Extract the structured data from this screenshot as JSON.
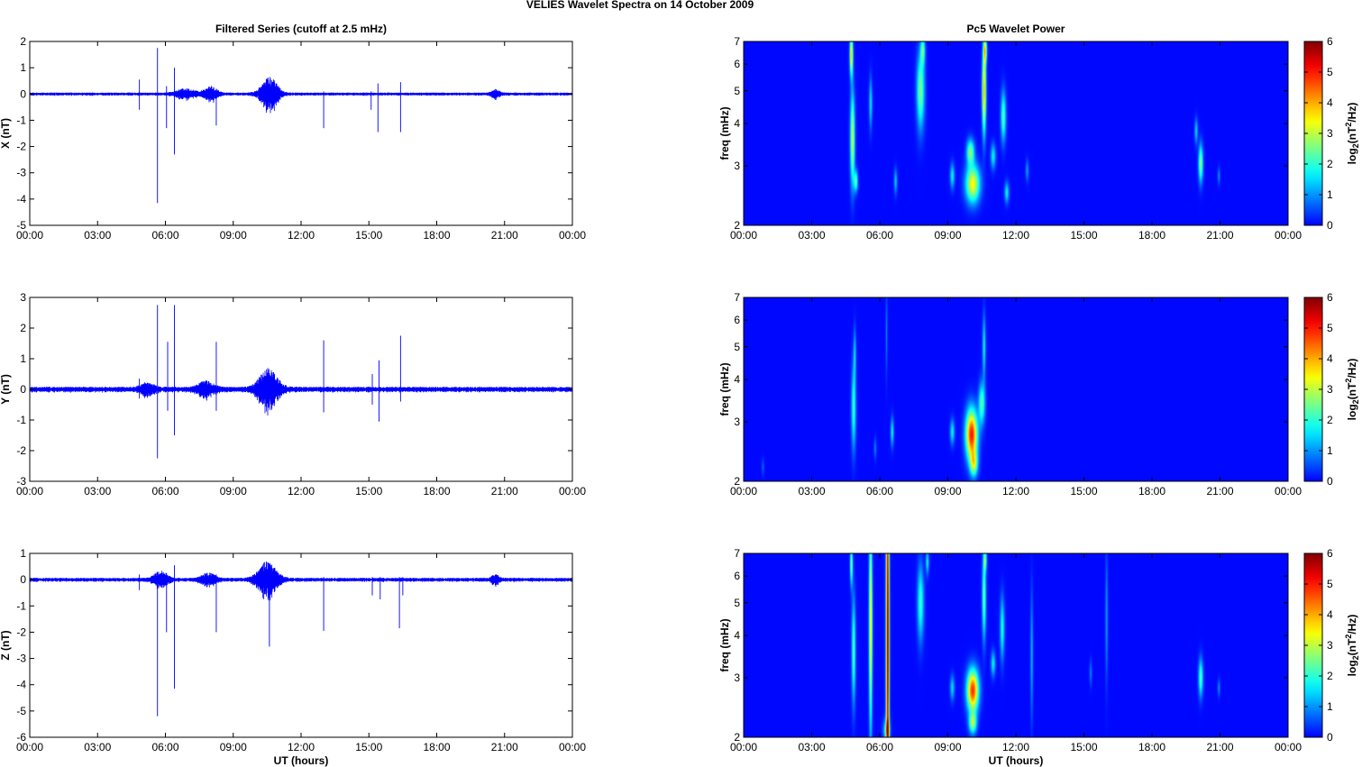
{
  "figure": {
    "suptitle": "VELIES Wavelet Spectra on 14 October   2009"
  },
  "chart_data": [
    {
      "type": "line",
      "panel": "filtered-x",
      "title": "Filtered Series (cutoff at 2.5 mHz)",
      "xlabel": "",
      "ylabel": "X (nT)",
      "x_ticks": [
        "00:00",
        "03:00",
        "06:00",
        "09:00",
        "12:00",
        "15:00",
        "18:00",
        "21:00",
        "00:00"
      ],
      "y_ticks": [
        2,
        1,
        0,
        -1,
        -2,
        -3,
        -4,
        -5
      ],
      "ylim": [
        -5,
        2
      ],
      "xlim_hours": [
        0,
        24
      ],
      "color": "#0000ff",
      "baseline_noise_amplitude": 0.04,
      "spikes": [
        {
          "t": 5.65,
          "min": -4.15,
          "max": 1.75
        },
        {
          "t": 6.4,
          "min": -2.3,
          "max": 1.0
        },
        {
          "t": 6.05,
          "min": -1.3,
          "max": 0.3
        },
        {
          "t": 4.85,
          "min": -0.6,
          "max": 0.55
        },
        {
          "t": 8.25,
          "min": -1.2,
          "max": 0.2
        },
        {
          "t": 13.0,
          "min": -1.3,
          "max": 0.1
        },
        {
          "t": 15.4,
          "min": -1.45,
          "max": 0.4
        },
        {
          "t": 16.4,
          "min": -1.45,
          "max": 0.45
        },
        {
          "t": 15.1,
          "min": -0.6,
          "max": 0.1
        }
      ],
      "bursts": [
        {
          "t": 10.6,
          "width": 0.6,
          "amp": 0.45
        },
        {
          "t": 8.0,
          "width": 0.5,
          "amp": 0.18
        },
        {
          "t": 6.9,
          "width": 0.7,
          "amp": 0.12
        },
        {
          "t": 20.6,
          "width": 0.3,
          "amp": 0.1
        }
      ]
    },
    {
      "type": "line",
      "panel": "filtered-y",
      "xlabel": "",
      "ylabel": "Y (nT)",
      "x_ticks": [
        "00:00",
        "03:00",
        "06:00",
        "09:00",
        "12:00",
        "15:00",
        "18:00",
        "21:00",
        "00:00"
      ],
      "y_ticks": [
        3,
        2,
        1,
        0,
        -1,
        -2,
        -3
      ],
      "ylim": [
        -3,
        3
      ],
      "xlim_hours": [
        0,
        24
      ],
      "color": "#0000ff",
      "baseline_noise_amplitude": 0.06,
      "spikes": [
        {
          "t": 5.65,
          "min": -2.25,
          "max": 2.75
        },
        {
          "t": 6.4,
          "min": -1.5,
          "max": 2.75
        },
        {
          "t": 6.1,
          "min": -0.7,
          "max": 1.55
        },
        {
          "t": 8.25,
          "min": -0.7,
          "max": 1.55
        },
        {
          "t": 13.0,
          "min": -0.75,
          "max": 1.6
        },
        {
          "t": 15.45,
          "min": -1.05,
          "max": 0.95
        },
        {
          "t": 16.4,
          "min": -0.4,
          "max": 1.75
        },
        {
          "t": 4.85,
          "min": -0.3,
          "max": 0.35
        },
        {
          "t": 15.15,
          "min": -0.5,
          "max": 0.5
        }
      ],
      "bursts": [
        {
          "t": 10.55,
          "width": 0.7,
          "amp": 0.45
        },
        {
          "t": 7.8,
          "width": 0.6,
          "amp": 0.15
        },
        {
          "t": 5.2,
          "width": 0.5,
          "amp": 0.12
        }
      ]
    },
    {
      "type": "line",
      "panel": "filtered-z",
      "xlabel": "UT (hours)",
      "ylabel": "Z (nT)",
      "x_ticks": [
        "00:00",
        "03:00",
        "06:00",
        "09:00",
        "12:00",
        "15:00",
        "18:00",
        "21:00",
        "00:00"
      ],
      "y_ticks": [
        1,
        0,
        -1,
        -2,
        -3,
        -4,
        -5,
        -6
      ],
      "ylim": [
        -6,
        1
      ],
      "xlim_hours": [
        0,
        24
      ],
      "color": "#0000ff",
      "baseline_noise_amplitude": 0.05,
      "spikes": [
        {
          "t": 5.65,
          "min": -5.2,
          "max": 0.3
        },
        {
          "t": 6.4,
          "min": -4.15,
          "max": 0.55
        },
        {
          "t": 6.05,
          "min": -2.0,
          "max": 0.25
        },
        {
          "t": 8.25,
          "min": -2.0,
          "max": 0.2
        },
        {
          "t": 10.6,
          "min": -2.55,
          "max": 0.5
        },
        {
          "t": 13.0,
          "min": -1.95,
          "max": 0.1
        },
        {
          "t": 15.15,
          "min": -0.6,
          "max": 0.1
        },
        {
          "t": 15.5,
          "min": -0.75,
          "max": 0.1
        },
        {
          "t": 16.35,
          "min": -1.85,
          "max": 0.1
        },
        {
          "t": 16.5,
          "min": -0.6,
          "max": 0.1
        },
        {
          "t": 4.85,
          "min": -0.4,
          "max": 0.2
        }
      ],
      "bursts": [
        {
          "t": 10.5,
          "width": 0.7,
          "amp": 0.45
        },
        {
          "t": 5.8,
          "width": 0.5,
          "amp": 0.2
        },
        {
          "t": 7.9,
          "width": 0.5,
          "amp": 0.15
        },
        {
          "t": 20.6,
          "width": 0.3,
          "amp": 0.1
        }
      ]
    },
    {
      "type": "heatmap",
      "panel": "wavelet-x",
      "title": "Pc5 Wavelet Power",
      "xlabel": "",
      "ylabel": "freq (mHz)",
      "x_ticks": [
        "00:00",
        "03:00",
        "06:00",
        "09:00",
        "12:00",
        "15:00",
        "18:00",
        "21:00",
        "00:00"
      ],
      "y_ticks": [
        2,
        3,
        4,
        5,
        6,
        7
      ],
      "y_scale": "log",
      "ylim": [
        2,
        7
      ],
      "xlim_hours": [
        0,
        24
      ],
      "colorbar_label": "log2(nT2/Hz)",
      "colorbar_ticks": [
        0,
        1,
        2,
        3,
        4,
        5,
        6
      ],
      "clim": [
        0,
        6
      ],
      "colormap": "jet",
      "features": [
        {
          "t": 4.8,
          "f": 3.6,
          "dt": 0.07,
          "df": 0.22,
          "p": 3.0
        },
        {
          "t": 4.75,
          "f": 6.4,
          "dt": 0.05,
          "df": 0.1,
          "p": 3.6
        },
        {
          "t": 4.95,
          "f": 2.7,
          "dt": 0.06,
          "df": 0.05,
          "p": 2.2
        },
        {
          "t": 5.6,
          "f": 4.6,
          "dt": 0.05,
          "df": 0.12,
          "p": 1.5
        },
        {
          "t": 6.7,
          "f": 2.7,
          "dt": 0.05,
          "df": 0.06,
          "p": 1.3
        },
        {
          "t": 7.8,
          "f": 5.0,
          "dt": 0.12,
          "df": 0.18,
          "p": 2.5
        },
        {
          "t": 7.9,
          "f": 6.6,
          "dt": 0.07,
          "df": 0.07,
          "p": 2.0
        },
        {
          "t": 9.2,
          "f": 2.8,
          "dt": 0.07,
          "df": 0.06,
          "p": 1.6
        },
        {
          "t": 10.1,
          "f": 2.65,
          "dt": 0.22,
          "df": 0.09,
          "p": 3.4
        },
        {
          "t": 10.0,
          "f": 3.3,
          "dt": 0.12,
          "df": 0.06,
          "p": 2.5
        },
        {
          "t": 10.6,
          "f": 5.0,
          "dt": 0.06,
          "df": 0.2,
          "p": 4.0
        },
        {
          "t": 10.65,
          "f": 6.6,
          "dt": 0.05,
          "df": 0.06,
          "p": 3.0
        },
        {
          "t": 11.0,
          "f": 3.2,
          "dt": 0.08,
          "df": 0.06,
          "p": 1.6
        },
        {
          "t": 11.45,
          "f": 4.2,
          "dt": 0.08,
          "df": 0.12,
          "p": 2.2
        },
        {
          "t": 11.6,
          "f": 2.5,
          "dt": 0.07,
          "df": 0.05,
          "p": 1.6
        },
        {
          "t": 12.5,
          "f": 2.9,
          "dt": 0.05,
          "df": 0.05,
          "p": 1.0
        },
        {
          "t": 20.15,
          "f": 3.05,
          "dt": 0.07,
          "df": 0.09,
          "p": 2.6
        },
        {
          "t": 19.95,
          "f": 3.8,
          "dt": 0.05,
          "df": 0.06,
          "p": 1.4
        },
        {
          "t": 20.95,
          "f": 2.8,
          "dt": 0.04,
          "df": 0.04,
          "p": 0.9
        }
      ]
    },
    {
      "type": "heatmap",
      "panel": "wavelet-y",
      "xlabel": "",
      "ylabel": "freq (mHz)",
      "x_ticks": [
        "00:00",
        "03:00",
        "06:00",
        "09:00",
        "12:00",
        "15:00",
        "18:00",
        "21:00",
        "00:00"
      ],
      "y_ticks": [
        2,
        3,
        4,
        5,
        6,
        7
      ],
      "y_scale": "log",
      "ylim": [
        2,
        7
      ],
      "xlim_hours": [
        0,
        24
      ],
      "colorbar_label": "log2(nT2/Hz)",
      "colorbar_ticks": [
        0,
        1,
        2,
        3,
        4,
        5,
        6
      ],
      "clim": [
        0,
        6
      ],
      "colormap": "jet",
      "features": [
        {
          "t": 10.05,
          "f": 2.75,
          "dt": 0.18,
          "df": 0.12,
          "p": 5.0
        },
        {
          "t": 10.15,
          "f": 2.25,
          "dt": 0.12,
          "df": 0.06,
          "p": 2.6
        },
        {
          "t": 10.5,
          "f": 3.4,
          "dt": 0.1,
          "df": 0.1,
          "p": 2.2
        },
        {
          "t": 10.6,
          "f": 5.0,
          "dt": 0.05,
          "df": 0.15,
          "p": 1.6
        },
        {
          "t": 9.2,
          "f": 2.8,
          "dt": 0.07,
          "df": 0.06,
          "p": 1.6
        },
        {
          "t": 4.85,
          "f": 3.3,
          "dt": 0.07,
          "df": 0.2,
          "p": 2.0
        },
        {
          "t": 4.9,
          "f": 4.8,
          "dt": 0.04,
          "df": 0.12,
          "p": 1.2
        },
        {
          "t": 6.55,
          "f": 2.8,
          "dt": 0.05,
          "df": 0.07,
          "p": 1.6
        },
        {
          "t": 6.3,
          "f": 5.5,
          "dt": 0.03,
          "df": 0.2,
          "p": 0.8
        },
        {
          "t": 0.85,
          "f": 2.2,
          "dt": 0.04,
          "df": 0.04,
          "p": 0.6
        },
        {
          "t": 5.8,
          "f": 2.5,
          "dt": 0.04,
          "df": 0.05,
          "p": 0.8
        }
      ]
    },
    {
      "type": "heatmap",
      "panel": "wavelet-z",
      "xlabel": "UT (hours)",
      "ylabel": "freq (mHz)",
      "x_ticks": [
        "00:00",
        "03:00",
        "06:00",
        "09:00",
        "12:00",
        "15:00",
        "18:00",
        "21:00",
        "00:00"
      ],
      "y_ticks": [
        2,
        3,
        4,
        5,
        6,
        7
      ],
      "y_scale": "log",
      "ylim": [
        2,
        7
      ],
      "xlim_hours": [
        0,
        24
      ],
      "colorbar_label": "log2(nT2/Hz)",
      "colorbar_ticks": [
        0,
        1,
        2,
        3,
        4,
        5,
        6
      ],
      "clim": [
        0,
        6
      ],
      "colormap": "jet",
      "features": [
        {
          "t": 6.35,
          "f": 4.0,
          "dt": 0.05,
          "df": 1.0,
          "p": 6.0
        },
        {
          "t": 5.6,
          "f": 4.3,
          "dt": 0.05,
          "df": 0.5,
          "p": 3.6
        },
        {
          "t": 6.3,
          "f": 2.1,
          "dt": 0.1,
          "df": 0.05,
          "p": 2.0
        },
        {
          "t": 4.85,
          "f": 3.6,
          "dt": 0.06,
          "df": 0.25,
          "p": 2.2
        },
        {
          "t": 4.75,
          "f": 6.5,
          "dt": 0.04,
          "df": 0.1,
          "p": 2.6
        },
        {
          "t": 10.1,
          "f": 2.75,
          "dt": 0.18,
          "df": 0.1,
          "p": 4.8
        },
        {
          "t": 10.1,
          "f": 2.2,
          "dt": 0.12,
          "df": 0.05,
          "p": 2.6
        },
        {
          "t": 10.6,
          "f": 5.2,
          "dt": 0.06,
          "df": 0.2,
          "p": 2.4
        },
        {
          "t": 10.65,
          "f": 6.7,
          "dt": 0.05,
          "df": 0.05,
          "p": 2.0
        },
        {
          "t": 7.8,
          "f": 5.0,
          "dt": 0.1,
          "df": 0.18,
          "p": 2.0
        },
        {
          "t": 8.1,
          "f": 6.6,
          "dt": 0.05,
          "df": 0.06,
          "p": 1.6
        },
        {
          "t": 9.2,
          "f": 2.8,
          "dt": 0.07,
          "df": 0.06,
          "p": 1.4
        },
        {
          "t": 11.0,
          "f": 3.3,
          "dt": 0.07,
          "df": 0.06,
          "p": 1.6
        },
        {
          "t": 11.4,
          "f": 4.2,
          "dt": 0.07,
          "df": 0.15,
          "p": 1.8
        },
        {
          "t": 12.7,
          "f": 3.5,
          "dt": 0.04,
          "df": 0.3,
          "p": 1.2
        },
        {
          "t": 16.0,
          "f": 4.5,
          "dt": 0.04,
          "df": 0.3,
          "p": 1.0
        },
        {
          "t": 20.15,
          "f": 3.0,
          "dt": 0.07,
          "df": 0.09,
          "p": 2.2
        },
        {
          "t": 20.95,
          "f": 2.8,
          "dt": 0.04,
          "df": 0.04,
          "p": 0.9
        },
        {
          "t": 15.3,
          "f": 3.1,
          "dt": 0.04,
          "df": 0.06,
          "p": 0.8
        }
      ]
    }
  ]
}
